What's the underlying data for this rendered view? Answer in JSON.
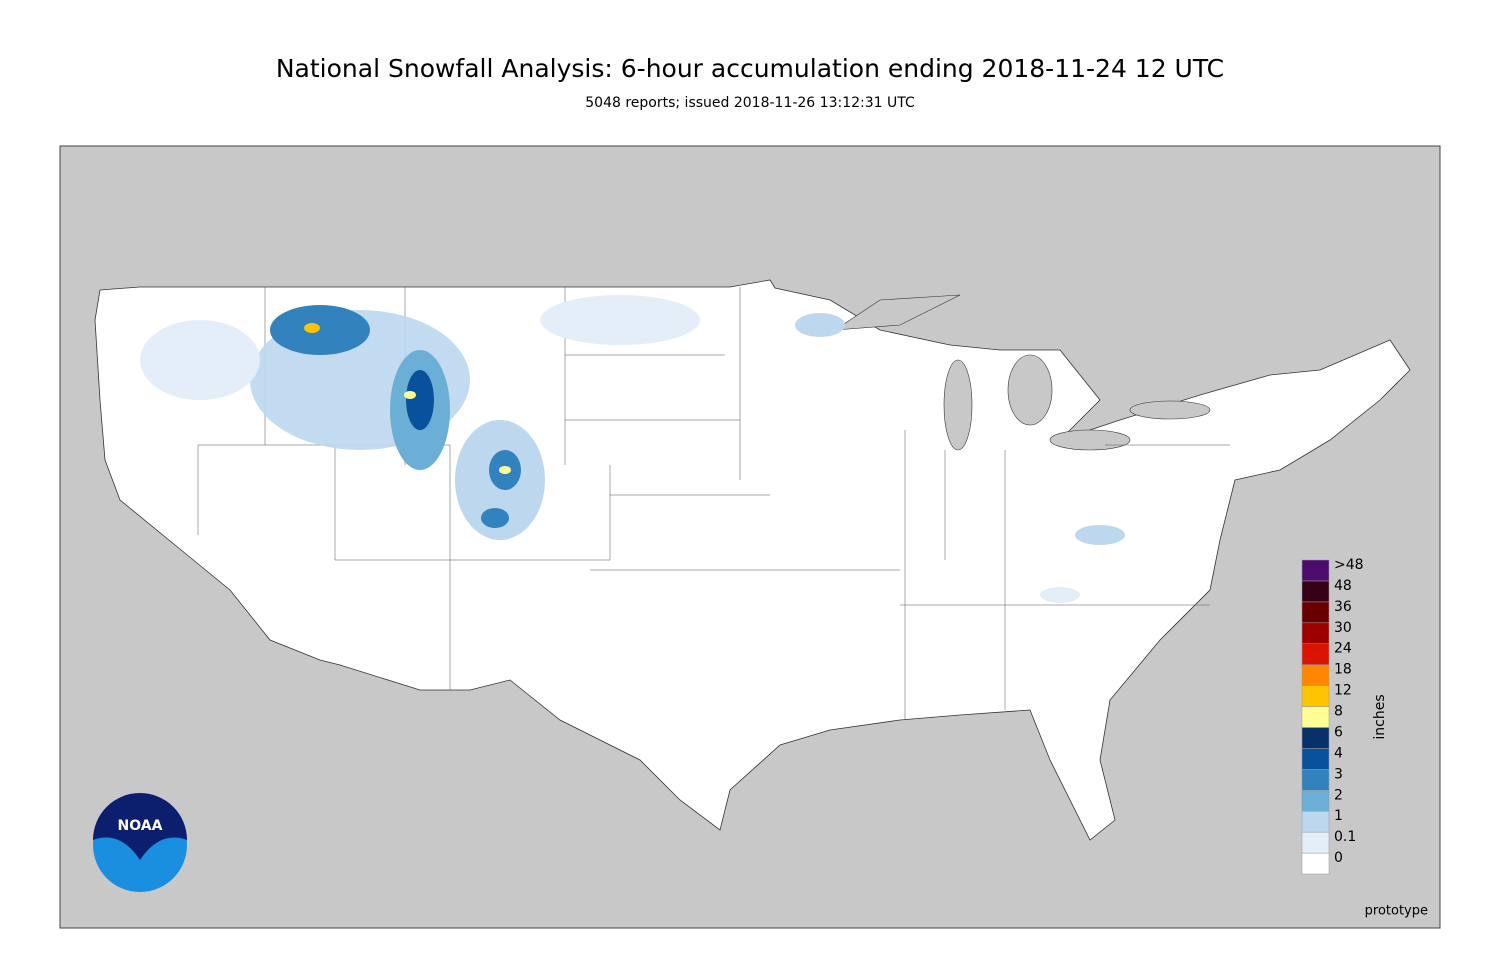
{
  "header": {
    "title": "National Snowfall Analysis: 6-hour accumulation ending 2018-11-24 12 UTC",
    "subtitle": "5048 reports; issued 2018-11-26 13:12:31 UTC"
  },
  "map": {
    "note": "prototype",
    "logo": "NOAA"
  },
  "colorbar": {
    "label": "inches",
    "levels": [
      "0",
      "0.1",
      "1",
      "2",
      "3",
      "4",
      "6",
      "8",
      "12",
      "18",
      "24",
      "30",
      "36",
      "48",
      ">48"
    ],
    "colors": [
      "#ffffff",
      "#e4eef9",
      "#bdd7ee",
      "#6baed6",
      "#3182bd",
      "#08519c",
      "#08306b",
      "#ffff96",
      "#ffc400",
      "#ff8700",
      "#db1400",
      "#9e0000",
      "#690000",
      "#360016",
      "#4b0c6b"
    ]
  }
}
